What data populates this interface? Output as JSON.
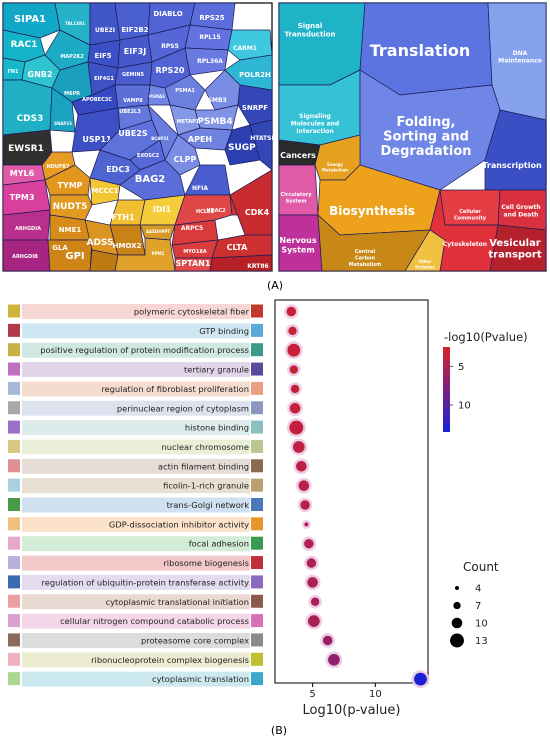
{
  "panel_a_label": "(A)",
  "panel_b_label": "(B)",
  "treemap_left": {
    "cells": [
      {
        "label": "SIPA1",
        "color": "#11a7c7"
      },
      {
        "label": "RAC1",
        "color": "#13b4c9"
      },
      {
        "label": "FN1",
        "color": "#17b9c8"
      },
      {
        "label": "GNB2",
        "color": "#2ec3cf"
      },
      {
        "label": "MAP2K2",
        "color": "#1cabc4"
      },
      {
        "label": "TBL1XR1",
        "color": "#25b1c8"
      },
      {
        "label": "CDS3",
        "color": "#20b0c6"
      },
      {
        "label": "M6PR",
        "color": "#1a9fbd"
      },
      {
        "label": "SNAP23",
        "color": "#1aa2c1"
      },
      {
        "label": "UBE2I",
        "color": "#3f55c8"
      },
      {
        "label": "EIF2B2",
        "color": "#4a5fd0"
      },
      {
        "label": "DIABLO",
        "color": "#5062d4"
      },
      {
        "label": "RPS25",
        "color": "#5a6ddb"
      },
      {
        "label": "EIF5",
        "color": "#3b50c4"
      },
      {
        "label": "EIF3J",
        "color": "#4658cc"
      },
      {
        "label": "RPL15",
        "color": "#6272de"
      },
      {
        "label": "EIF4G1",
        "color": "#3d52c6"
      },
      {
        "label": "GEMIN5",
        "color": "#4a5dcf"
      },
      {
        "label": "RPS5",
        "color": "#5567d6"
      },
      {
        "label": "RPL36A",
        "color": "#6a79e0"
      },
      {
        "label": "RPS20",
        "color": "#5163d3"
      },
      {
        "label": "APOBEC3C",
        "color": "#3649c0"
      },
      {
        "label": "USP11",
        "color": "#3c4fc4"
      },
      {
        "label": "VAMP8",
        "color": "#5b6fd8"
      },
      {
        "label": "UBE2L3",
        "color": "#6578dc"
      },
      {
        "label": "UBE2S",
        "color": "#5d72da"
      },
      {
        "label": "PSMA1",
        "color": "#6c80e0"
      },
      {
        "label": "PSMB3",
        "color": "#7a8de4"
      },
      {
        "label": "PSMA3",
        "color": "#7285e2"
      },
      {
        "label": "PSMB4",
        "color": "#8093e6"
      },
      {
        "label": "METAP1",
        "color": "#8598e8"
      },
      {
        "label": "APEH",
        "color": "#6f82e0"
      },
      {
        "label": "EXOSC2",
        "color": "#5669d6"
      },
      {
        "label": "EDC3",
        "color": "#4f63d2"
      },
      {
        "label": "BCAP31",
        "color": "#6a7ddf"
      },
      {
        "label": "CLPP",
        "color": "#7a8ce3"
      },
      {
        "label": "BAG2",
        "color": "#5a6dd8"
      },
      {
        "label": "NFIA",
        "color": "#4a5dcf"
      },
      {
        "label": "CARM1",
        "color": "#3ec8e0"
      },
      {
        "label": "POLR2H",
        "color": "#2eb6d4"
      },
      {
        "label": "SNRPF",
        "color": "#3347b8"
      },
      {
        "label": "SUGP2",
        "color": "#2c3fb0"
      },
      {
        "label": "HTATSF1",
        "color": "#3346b6"
      },
      {
        "label": "EWSR1",
        "color": "#303030"
      },
      {
        "label": "MYL6",
        "color": "#e05aa8"
      },
      {
        "label": "TPM3",
        "color": "#d8409c"
      },
      {
        "label": "ARHGDIA",
        "color": "#b82f8c"
      },
      {
        "label": "ARHGDIB",
        "color": "#a52580"
      },
      {
        "label": "NDUFB7",
        "color": "#e89b22"
      },
      {
        "label": "TYMP",
        "color": "#e2961c"
      },
      {
        "label": "MCCC1",
        "color": "#f3c734"
      },
      {
        "label": "NUDT5",
        "color": "#e39a20"
      },
      {
        "label": "FTH1",
        "color": "#f0c030"
      },
      {
        "label": "IDI1",
        "color": "#f5cc3a"
      },
      {
        "label": "NME1",
        "color": "#d78c1a"
      },
      {
        "label": "GLA",
        "color": "#cf8418"
      },
      {
        "label": "ADSS",
        "color": "#dc9420"
      },
      {
        "label": "HMOX2",
        "color": "#c98216"
      },
      {
        "label": "GPI",
        "color": "#c07a14"
      },
      {
        "label": "AASDHPPT",
        "color": "#d89a26"
      },
      {
        "label": "PPM1",
        "color": "#e0a22a"
      },
      {
        "label": "ARPC5",
        "color": "#d93a3a"
      },
      {
        "label": "HCLS1",
        "color": "#e04848"
      },
      {
        "label": "HDAC2",
        "color": "#d23434"
      },
      {
        "label": "CDK4",
        "color": "#c92c30"
      },
      {
        "label": "MYO18A",
        "color": "#d83c3c"
      },
      {
        "label": "SPTAN1",
        "color": "#e04a4a"
      },
      {
        "label": "CLTA",
        "color": "#cc3030"
      },
      {
        "label": "KRT86",
        "color": "#b82028"
      }
    ]
  },
  "treemap_right": {
    "cells": [
      {
        "label": "Signal Transduction",
        "color": "#1fb3c8"
      },
      {
        "label": "Translation",
        "color": "#5b74e0"
      },
      {
        "label": "DNA Maintenance",
        "color": "#86a2ef"
      },
      {
        "label": "Signaling Molecules and Interaction",
        "color": "#36c2d6"
      },
      {
        "label": "Folding, Sorting and Degradation",
        "color": "#6f86e6"
      },
      {
        "label": "Transcription",
        "color": "#3a4fc4"
      },
      {
        "label": "Cancers",
        "color": "#2a2a2a"
      },
      {
        "label": "Energy Metabolism",
        "color": "#e6a020"
      },
      {
        "label": "Biosynthesis",
        "color": "#eea21c"
      },
      {
        "label": "Circulatory System",
        "color": "#e05aa8"
      },
      {
        "label": "Cellular Community",
        "color": "#e43e44"
      },
      {
        "label": "Cell Growth and Death",
        "color": "#d93040"
      },
      {
        "label": "Nervous System",
        "color": "#c0309a"
      },
      {
        "label": "Central Carbon Metabolism",
        "color": "#c88818"
      },
      {
        "label": "Other Enzymes",
        "color": "#f0c040"
      },
      {
        "label": "Cytoskeleton",
        "color": "#e0303c"
      },
      {
        "label": "Vesicular transport",
        "color": "#b4202c"
      }
    ]
  },
  "chart_data": {
    "type": "scatter",
    "xlabel": "Log10(p-value)",
    "x_ticks": [
      5,
      10
    ],
    "xlim": [
      2,
      14.2
    ],
    "color_legend": {
      "title": "-log10(Pvalue)",
      "ticks": [
        5,
        10
      ],
      "range": [
        2.5,
        13.5
      ],
      "low_color": "#d8202a",
      "high_color": "#1a20d8"
    },
    "size_legend": {
      "title": "Count",
      "values": [
        4,
        7,
        10,
        13
      ]
    },
    "terms": [
      {
        "label": "polymeric cytoskeletal fiber",
        "x": 3.3,
        "count": 9,
        "row_color": "#f7d7d3",
        "left_swatch": "#cfb53b",
        "right_swatch": "#c0392b"
      },
      {
        "label": "GTP binding",
        "x": 3.4,
        "count": 8,
        "row_color": "#cfe7f2",
        "left_swatch": "#b03a48",
        "right_swatch": "#5aa9d6"
      },
      {
        "label": "positive regulation of protein modification process",
        "x": 3.5,
        "count": 12,
        "row_color": "#cfe9e2",
        "left_swatch": "#c8b048",
        "right_swatch": "#3a9a8a"
      },
      {
        "label": "tertiary granule",
        "x": 3.5,
        "count": 8,
        "row_color": "#e2d5ea",
        "left_swatch": "#c070c0",
        "right_swatch": "#5a4a9a"
      },
      {
        "label": "regulation of fibroblast proliferation",
        "x": 3.6,
        "count": 8,
        "row_color": "#f5dccf",
        "left_swatch": "#a8b8d8",
        "right_swatch": "#e8a080"
      },
      {
        "label": "perinuclear region of cytoplasm",
        "x": 3.6,
        "count": 10,
        "row_color": "#dde3ee",
        "left_swatch": "#a8a8a8",
        "right_swatch": "#8a98c0"
      },
      {
        "label": "histone binding",
        "x": 3.7,
        "count": 13,
        "row_color": "#dcecea",
        "left_swatch": "#9a70c8",
        "right_swatch": "#8ac0c0"
      },
      {
        "label": "nuclear chromosome",
        "x": 3.9,
        "count": 11,
        "row_color": "#eaf0d8",
        "left_swatch": "#d8c880",
        "right_swatch": "#b8c890"
      },
      {
        "label": "actin filament binding",
        "x": 4.1,
        "count": 10,
        "row_color": "#e5dcd6",
        "left_swatch": "#e09090",
        "right_swatch": "#8a6a4a"
      },
      {
        "label": "ficolin-1-rich granule",
        "x": 4.3,
        "count": 10,
        "row_color": "#e8e0d2",
        "left_swatch": "#a8d0e0",
        "right_swatch": "#b8a070"
      },
      {
        "label": "trans-Golgi network",
        "x": 4.4,
        "count": 9,
        "row_color": "#cfe0f0",
        "left_swatch": "#4a9a4a",
        "right_swatch": "#4a78b8"
      },
      {
        "label": "GDP-dissociation inhibitor activity",
        "x": 4.5,
        "count": 4,
        "row_color": "#fbe2c8",
        "left_swatch": "#f0c080",
        "right_swatch": "#e8952a"
      },
      {
        "label": "focal adhesion",
        "x": 4.7,
        "count": 9,
        "row_color": "#d3ecd6",
        "left_swatch": "#e8a8c8",
        "right_swatch": "#3a9a50"
      },
      {
        "label": "ribosome biogenesis",
        "x": 4.9,
        "count": 9,
        "row_color": "#f2c8c8",
        "left_swatch": "#b8b0d8",
        "right_swatch": "#c0303a"
      },
      {
        "label": "regulation of ubiquitin-protein transferase activity",
        "x": 5.0,
        "count": 10,
        "row_color": "#e2dcee",
        "left_swatch": "#3a6ab0",
        "right_swatch": "#8a6ac0"
      },
      {
        "label": "cytoplasmic translational initiation",
        "x": 5.2,
        "count": 8,
        "row_color": "#ead8d2",
        "left_swatch": "#e8a0a0",
        "right_swatch": "#8a5a4a"
      },
      {
        "label": "cellular nitrogen compound catabolic process",
        "x": 5.1,
        "count": 11,
        "row_color": "#f5d6e8",
        "left_swatch": "#d8a0d0",
        "right_swatch": "#d870b8"
      },
      {
        "label": "proteasome core complex",
        "x": 6.2,
        "count": 9,
        "row_color": "#dcdcdc",
        "left_swatch": "#8a6a5a",
        "right_swatch": "#8a8a8a"
      },
      {
        "label": "ribonucleoprotein complex biogenesis",
        "x": 6.7,
        "count": 11,
        "row_color": "#ecedd0",
        "left_swatch": "#f0b0c0",
        "right_swatch": "#c0c030"
      },
      {
        "label": "cytoplasmic translation",
        "x": 13.6,
        "count": 12,
        "row_color": "#cde9f0",
        "left_swatch": "#a8d890",
        "right_swatch": "#3aa8c8"
      }
    ]
  }
}
